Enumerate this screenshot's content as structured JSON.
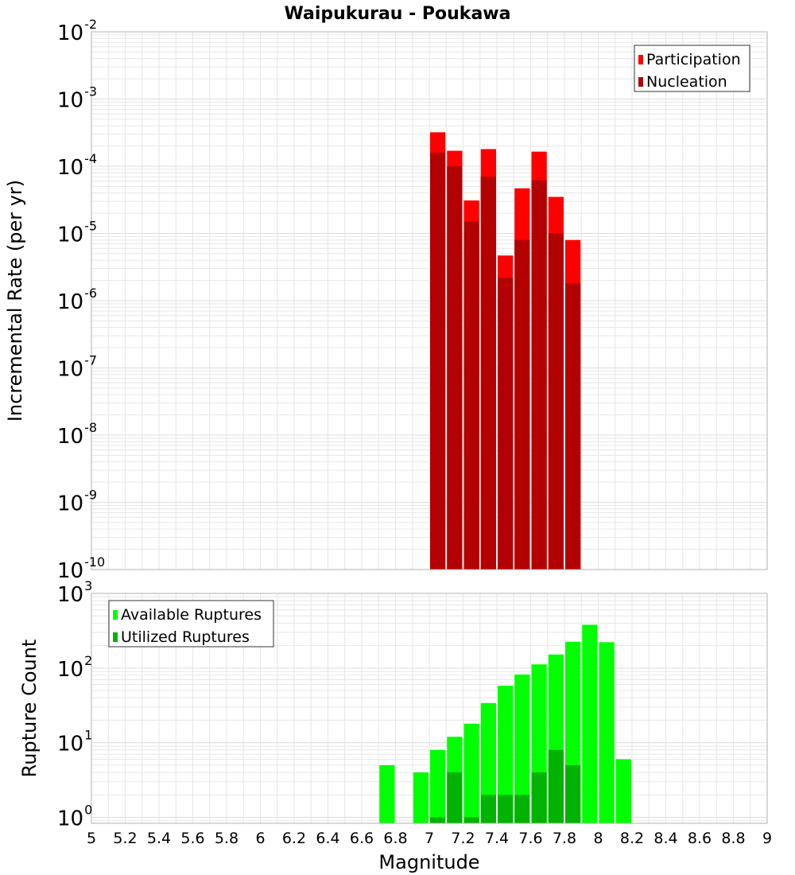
{
  "chart_data": {
    "type": "bar",
    "title": "Waipukurau - Poukawa",
    "xlabel": "Magnitude",
    "xlim": [
      5,
      9
    ],
    "xticks": [
      "5",
      "5.2",
      "5.4",
      "5.6",
      "5.8",
      "6",
      "6.2",
      "6.4",
      "6.6",
      "6.8",
      "7",
      "7.2",
      "7.4",
      "7.6",
      "7.8",
      "8",
      "8.2",
      "8.4",
      "8.6",
      "8.8",
      "9"
    ],
    "bin_width": 0.1,
    "colors": {
      "participation": "#ff0000",
      "nucleation": "#b30000",
      "available": "#00ff00",
      "utilized": "#00b300",
      "grid": "#e6e6e6",
      "frame": "#b0b0b0"
    },
    "panels": [
      {
        "name": "rate",
        "ylabel": "Incremental Rate (per yr)",
        "yscale": "log",
        "ylim_exp": [
          -10,
          -2
        ],
        "ytick_exps": [
          "-10",
          "-9",
          "-8",
          "-7",
          "-6",
          "-5",
          "-4",
          "-3",
          "-2"
        ],
        "legend": {
          "position": "top-right",
          "entries": [
            "Participation",
            "Nucleation"
          ]
        },
        "x": [
          7.05,
          7.15,
          7.25,
          7.35,
          7.45,
          7.55,
          7.65,
          7.75,
          7.85
        ],
        "series": [
          {
            "name": "Participation",
            "values": [
              0.00032,
              0.00017,
              3.1e-05,
              0.00018,
              4.7e-06,
              4.7e-05,
              0.000165,
              3.5e-05,
              8e-06
            ]
          },
          {
            "name": "Nucleation",
            "values": [
              0.00016,
              0.0001,
              1.5e-05,
              7e-05,
              2.2e-06,
              8e-06,
              6.2e-05,
              1e-05,
              1.8e-06
            ]
          }
        ]
      },
      {
        "name": "count",
        "ylabel": "Rupture Count",
        "yscale": "log",
        "ylim_exp": [
          -0.08,
          3
        ],
        "ytick_exps": [
          "0",
          "1",
          "2",
          "3"
        ],
        "legend": {
          "position": "top-left",
          "entries": [
            "Available Ruptures",
            "Utilized Ruptures"
          ]
        },
        "x": [
          6.75,
          6.95,
          7.05,
          7.15,
          7.25,
          7.35,
          7.45,
          7.55,
          7.65,
          7.75,
          7.85,
          7.95,
          8.05,
          8.15
        ],
        "series": [
          {
            "name": "Available Ruptures",
            "values": [
              5,
              4,
              8,
              12,
              18,
              34,
              58,
              82,
              112,
              152,
              225,
              380,
              222,
              6
            ]
          },
          {
            "name": "Utilized Ruptures",
            "values": [
              0,
              0,
              1,
              4,
              1,
              2,
              2,
              2,
              4,
              8,
              5,
              0,
              0,
              0
            ]
          }
        ]
      }
    ]
  }
}
